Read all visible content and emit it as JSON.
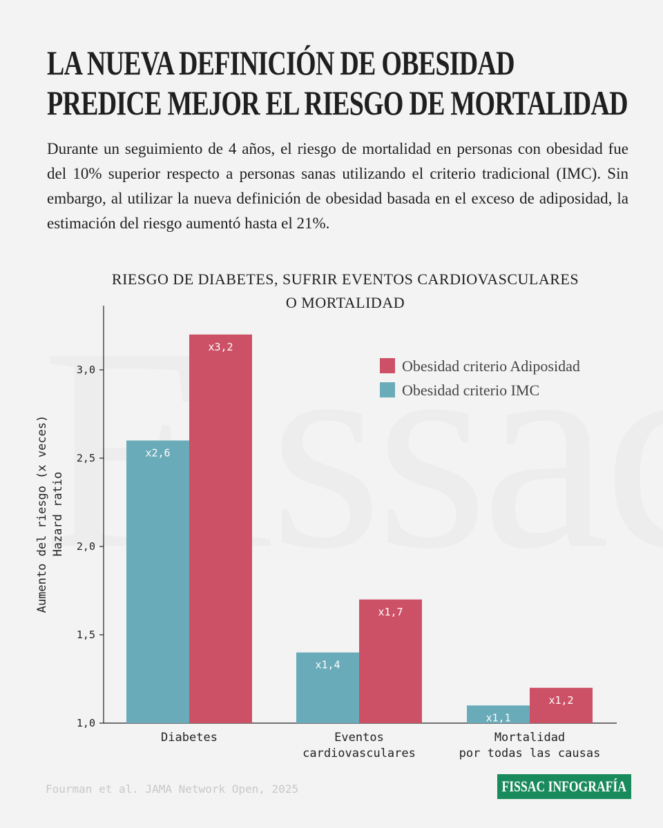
{
  "header": {
    "title_lines": [
      "LA NUEVA DEFINICIÓN DE OBESIDAD",
      "PREDICE MEJOR EL RIESGO DE MORTALIDAD"
    ],
    "lede": "Durante un seguimiento de 4 años, el riesgo de mortalidad en personas con obesidad fue del 10% superior respecto a personas sanas utilizando el criterio tradicional (IMC). Sin embargo, al utilizar la nueva definición de obesidad basada en el exceso de adiposidad, la estimación del riesgo aumentó hasta el 21%."
  },
  "watermark": "Fissac",
  "chart_data": {
    "type": "bar",
    "title_lines": [
      "RIESGO DE DIABETES, SUFRIR EVENTOS CARDIOVASCULARES",
      "O MORTALIDAD"
    ],
    "ylabel_lines": [
      "Aumento del riesgo (x veces)",
      "Hazard ratio"
    ],
    "categories": [
      [
        "Diabetes"
      ],
      [
        "Eventos",
        "cardiovasculares"
      ],
      [
        "Mortalidad",
        "por todas las causas"
      ]
    ],
    "series": [
      {
        "name": "Obesidad criterio IMC",
        "color": "#6aabb9",
        "values": [
          2.6,
          1.4,
          1.1
        ],
        "labels": [
          "x2,6",
          "x1,4",
          "x1,1"
        ]
      },
      {
        "name": "Obesidad criterio Adiposidad",
        "color": "#cc5166",
        "values": [
          3.2,
          1.7,
          1.2
        ],
        "labels": [
          "x3,2",
          "x1,7",
          "x1,2"
        ]
      }
    ],
    "legend_order": [
      "Obesidad criterio Adiposidad",
      "Obesidad criterio IMC"
    ],
    "legend_position": "top-right",
    "ylim": [
      1.0,
      3.4
    ],
    "yticks": [
      1.0,
      1.5,
      2.0,
      2.5,
      3.0
    ],
    "ytick_labels": [
      "1,0",
      "1,5",
      "2,0",
      "2,5",
      "3,0"
    ],
    "grid": false
  },
  "footer": {
    "source": "Fourman et al. JAMA Network Open, 2025",
    "brand": "FISSAC INFOGRAFÍA"
  }
}
